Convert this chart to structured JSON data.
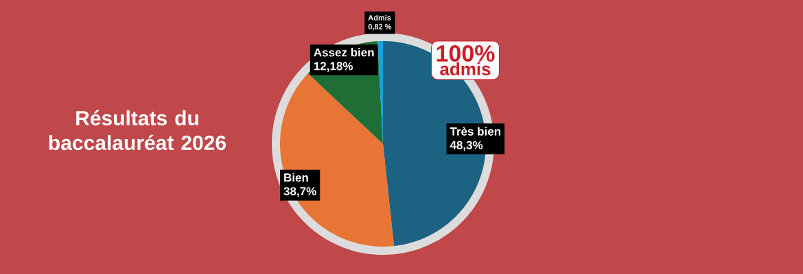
{
  "chart_data": {
    "type": "pie",
    "title": "Résultats du baccalauréat 2026",
    "categories": [
      "Très bien",
      "Bien",
      "Assez bien",
      "Admis"
    ],
    "values": [
      48.3,
      38.7,
      12.18,
      0.82
    ],
    "colors": [
      "#1c6383",
      "#e87535",
      "#1e6e36",
      "#1aa0dc"
    ],
    "value_labels": [
      "48,3%",
      "38,7%",
      "12,18%",
      "0,82 %"
    ],
    "annotations": [
      "100%",
      "admis"
    ]
  }
}
